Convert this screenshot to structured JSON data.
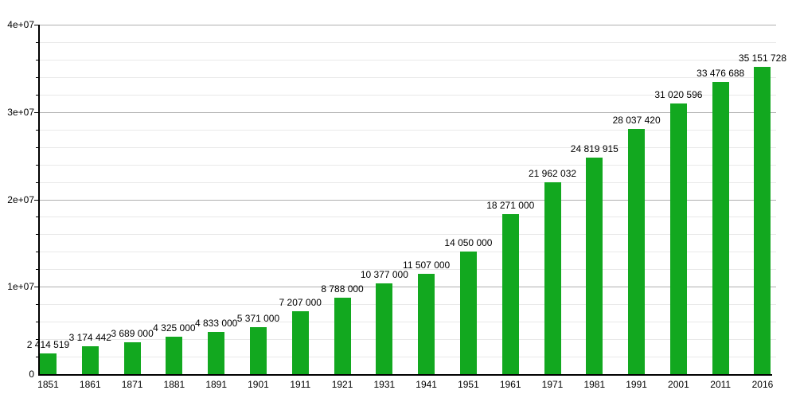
{
  "chart_data": {
    "type": "bar",
    "title": "",
    "xlabel": "",
    "ylabel": "",
    "categories": [
      "1851",
      "1861",
      "1871",
      "1881",
      "1891",
      "1901",
      "1911",
      "1921",
      "1931",
      "1941",
      "1951",
      "1961",
      "1971",
      "1981",
      "1991",
      "2001",
      "2011",
      "2016"
    ],
    "values": [
      2414519,
      3174442,
      3689000,
      4325000,
      4833000,
      5371000,
      7207000,
      8788000,
      10377000,
      11507000,
      14050000,
      18271000,
      21962032,
      24819915,
      28037420,
      31020596,
      33476688,
      35151728
    ],
    "value_labels": [
      "2 414 519",
      "3 174 442",
      "3 689 000",
      "4 325 000",
      "4 833 000",
      "5 371 000",
      "7 207 000",
      "8 788 000",
      "10 377 000",
      "11 507 000",
      "14 050 000",
      "18 271 000",
      "21 962 032",
      "24 819 915",
      "28 037 420",
      "31 020 596",
      "33 476 688",
      "35 151 728"
    ],
    "ylim": [
      0,
      40000000
    ],
    "y_major_ticks": [
      0,
      10000000,
      20000000,
      30000000,
      40000000
    ],
    "y_tick_labels": [
      "0",
      "1e+07",
      "2e+07",
      "3e+07",
      "4e+07"
    ],
    "y_minor_step": 2000000,
    "grid": true,
    "legend_position": "none",
    "colors": {
      "bar": "#12a81f",
      "major_grid": "#b0b0b0",
      "minor_grid": "#e9e9e9",
      "axis": "#000000",
      "text": "#000000",
      "background": "#ffffff"
    }
  }
}
